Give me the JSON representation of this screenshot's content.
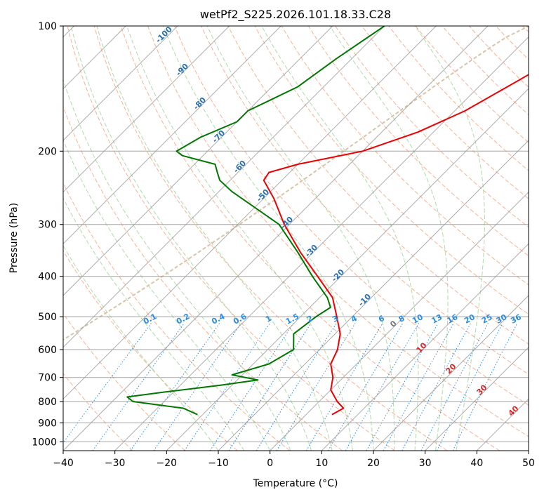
{
  "chart_data": {
    "type": "line",
    "title": "wetPf2_S225.2026.101.18.33.C28",
    "xlabel": "Temperature (°C)",
    "ylabel": "Pressure (hPa)",
    "xlim": [
      -40,
      50
    ],
    "ylim": [
      1050,
      100
    ],
    "y_scale": "log",
    "grid": true,
    "x_ticks": [
      -40,
      -30,
      -20,
      -10,
      0,
      10,
      20,
      30,
      40,
      50
    ],
    "y_ticks": [
      100,
      200,
      300,
      400,
      500,
      600,
      700,
      800,
      900,
      1000
    ],
    "colors": {
      "temperature": "#ee0000",
      "dewpoint": "#007700",
      "dry_adiabat": "#f4a582",
      "moist_adiabat": "#a6d6a0",
      "mixing_ratio": "#2b8ce0",
      "isotherm": "#999999",
      "sat_line": "#d8c4a8"
    },
    "series": [
      {
        "key": "temperature",
        "points": [
          {
            "p": 100,
            "t": -18.0
          },
          {
            "p": 115,
            "t": -19.5
          },
          {
            "p": 135,
            "t": -23.5
          },
          {
            "p": 160,
            "t": -28.0
          },
          {
            "p": 180,
            "t": -33.0
          },
          {
            "p": 200,
            "t": -40.0
          },
          {
            "p": 215,
            "t": -50.0
          },
          {
            "p": 225,
            "t": -54.0
          },
          {
            "p": 235,
            "t": -53.5
          },
          {
            "p": 260,
            "t": -48.0
          },
          {
            "p": 300,
            "t": -41.0
          },
          {
            "p": 350,
            "t": -32.5
          },
          {
            "p": 400,
            "t": -24.5
          },
          {
            "p": 450,
            "t": -17.5
          },
          {
            "p": 500,
            "t": -13.0
          },
          {
            "p": 550,
            "t": -9.0
          },
          {
            "p": 600,
            "t": -6.5
          },
          {
            "p": 650,
            "t": -5.0
          },
          {
            "p": 700,
            "t": -2.0
          },
          {
            "p": 750,
            "t": 0.0
          },
          {
            "p": 800,
            "t": 3.5
          },
          {
            "p": 830,
            "t": 6.0
          },
          {
            "p": 860,
            "t": 5.0
          }
        ]
      },
      {
        "key": "dewpoint",
        "points": [
          {
            "p": 100,
            "t": -60.0
          },
          {
            "p": 120,
            "t": -63.0
          },
          {
            "p": 140,
            "t": -65.0
          },
          {
            "p": 160,
            "t": -70.0
          },
          {
            "p": 170,
            "t": -70.0
          },
          {
            "p": 185,
            "t": -74.0
          },
          {
            "p": 200,
            "t": -76.0
          },
          {
            "p": 205,
            "t": -74.0
          },
          {
            "p": 215,
            "t": -66.0
          },
          {
            "p": 225,
            "t": -64.0
          },
          {
            "p": 235,
            "t": -62.0
          },
          {
            "p": 250,
            "t": -57.5
          },
          {
            "p": 300,
            "t": -42.0
          },
          {
            "p": 350,
            "t": -33.0
          },
          {
            "p": 400,
            "t": -25.5
          },
          {
            "p": 450,
            "t": -18.5
          },
          {
            "p": 475,
            "t": -16.0
          },
          {
            "p": 500,
            "t": -17.0
          },
          {
            "p": 550,
            "t": -18.0
          },
          {
            "p": 600,
            "t": -15.0
          },
          {
            "p": 650,
            "t": -17.0
          },
          {
            "p": 690,
            "t": -22.0
          },
          {
            "p": 710,
            "t": -16.0
          },
          {
            "p": 730,
            "t": -22.0
          },
          {
            "p": 760,
            "t": -32.0
          },
          {
            "p": 780,
            "t": -38.0
          },
          {
            "p": 800,
            "t": -36.0
          },
          {
            "p": 830,
            "t": -25.0
          },
          {
            "p": 860,
            "t": -21.0
          }
        ]
      }
    ],
    "isotherm_skew_note": "",
    "mixing_ratio_labels": [
      "0.1",
      "0.2",
      "0.4",
      "0.6",
      "1",
      "1.5",
      "2",
      "3",
      "4",
      "6",
      "8",
      "10",
      "13",
      "16",
      "20",
      "25",
      "30",
      "36"
    ],
    "moist_adiabat_labels": [
      "-100",
      "-90",
      "-80",
      "-70",
      "-60",
      "-50",
      "-40",
      "-30",
      "-20",
      "-10"
    ],
    "dry_adiabat_labels": [
      "0",
      "10",
      "20",
      "30",
      "40"
    ]
  }
}
